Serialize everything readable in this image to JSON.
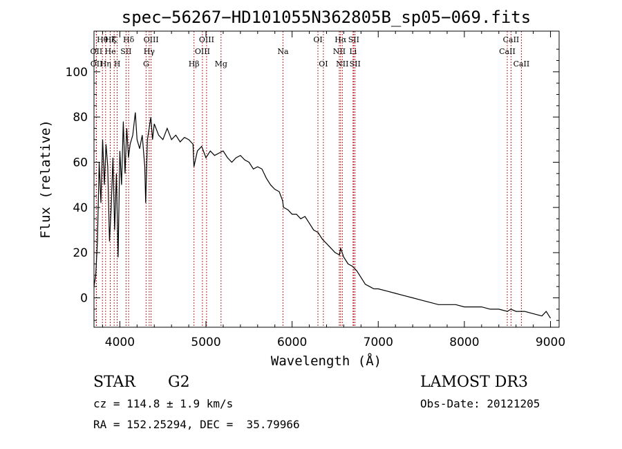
{
  "chart_data": {
    "type": "line",
    "title": "spec−56267−HD101055N362805B_sp05−069.fits",
    "xlabel": "Wavelength (Å)",
    "ylabel": "Flux (relative)",
    "xlim": [
      3700,
      9100
    ],
    "ylim": [
      -13,
      118
    ],
    "xticks": [
      4000,
      5000,
      6000,
      7000,
      8000,
      9000
    ],
    "yticks": [
      0,
      20,
      40,
      60,
      80,
      100
    ],
    "grid": false,
    "series": [
      {
        "name": "flux",
        "x": [
          3700,
          3720,
          3740,
          3760,
          3780,
          3800,
          3820,
          3840,
          3860,
          3880,
          3900,
          3920,
          3940,
          3960,
          3980,
          4000,
          4020,
          4040,
          4060,
          4080,
          4100,
          4120,
          4150,
          4180,
          4200,
          4230,
          4260,
          4290,
          4300,
          4320,
          4340,
          4360,
          4380,
          4400,
          4450,
          4500,
          4550,
          4600,
          4650,
          4700,
          4750,
          4800,
          4850,
          4860,
          4900,
          4950,
          5000,
          5050,
          5100,
          5150,
          5200,
          5250,
          5300,
          5350,
          5400,
          5450,
          5500,
          5550,
          5600,
          5650,
          5700,
          5750,
          5800,
          5850,
          5890,
          5900,
          5950,
          6000,
          6050,
          6100,
          6150,
          6200,
          6250,
          6300,
          6350,
          6400,
          6450,
          6500,
          6550,
          6563,
          6600,
          6650,
          6700,
          6750,
          6800,
          6850,
          6900,
          6950,
          7000,
          7100,
          7200,
          7300,
          7400,
          7500,
          7600,
          7700,
          7800,
          7900,
          8000,
          8100,
          8200,
          8300,
          8400,
          8500,
          8540,
          8600,
          8700,
          8800,
          8900,
          8950,
          9000
        ],
        "y": [
          5,
          10,
          25,
          60,
          42,
          70,
          50,
          68,
          58,
          25,
          40,
          62,
          30,
          55,
          18,
          65,
          50,
          78,
          55,
          75,
          62,
          68,
          72,
          82,
          70,
          66,
          72,
          58,
          42,
          70,
          75,
          80,
          70,
          77,
          72,
          70,
          75,
          70,
          72,
          69,
          71,
          70,
          68,
          58,
          65,
          67,
          62,
          65,
          63,
          64,
          65,
          62,
          60,
          62,
          63,
          61,
          60,
          57,
          58,
          57,
          53,
          50,
          48,
          47,
          43,
          40,
          39,
          37,
          37,
          35,
          36,
          33,
          30,
          29,
          26,
          24,
          22,
          20,
          19,
          22,
          18,
          15,
          14,
          12,
          9,
          6,
          5,
          4,
          4,
          3,
          2,
          1,
          0,
          -1,
          -2,
          -3,
          -3,
          -3,
          -4,
          -4,
          -4,
          -5,
          -5,
          -6,
          -5,
          -6,
          -6,
          -7,
          -8,
          -6,
          -9
        ]
      }
    ],
    "lines": [
      {
        "label": "OII",
        "wavelength": 3727,
        "row": 2
      },
      {
        "label": "OII",
        "wavelength": 3729,
        "row": 3
      },
      {
        "label": "Hθ",
        "wavelength": 3798,
        "row": 1
      },
      {
        "label": "Hη",
        "wavelength": 3835,
        "row": 3
      },
      {
        "label": "Hζ",
        "wavelength": 3889,
        "row": 1
      },
      {
        "label": "He",
        "wavelength": 3889,
        "row": 2
      },
      {
        "label": "K",
        "wavelength": 3934,
        "row": 1
      },
      {
        "label": "H",
        "wavelength": 3969,
        "row": 3
      },
      {
        "label": "SII",
        "wavelength": 4072,
        "row": 2
      },
      {
        "label": "Hδ",
        "wavelength": 4102,
        "row": 1
      },
      {
        "label": "G",
        "wavelength": 4305,
        "row": 3
      },
      {
        "label": "Hγ",
        "wavelength": 4341,
        "row": 2
      },
      {
        "label": "OIII",
        "wavelength": 4363,
        "row": 1
      },
      {
        "label": "Hβ",
        "wavelength": 4861,
        "row": 3
      },
      {
        "label": "OIII",
        "wavelength": 4959,
        "row": 2
      },
      {
        "label": "OIII",
        "wavelength": 5007,
        "row": 1
      },
      {
        "label": "Mg",
        "wavelength": 5175,
        "row": 3
      },
      {
        "label": "Na",
        "wavelength": 5894,
        "row": 2
      },
      {
        "label": "OI",
        "wavelength": 6300,
        "row": 1
      },
      {
        "label": "OI",
        "wavelength": 6363,
        "row": 3
      },
      {
        "label": "NII",
        "wavelength": 6548,
        "row": 2
      },
      {
        "label": "NII",
        "wavelength": 6583,
        "row": 3
      },
      {
        "label": "Hα",
        "wavelength": 6563,
        "row": 1
      },
      {
        "label": "SII",
        "wavelength": 6716,
        "row": 1
      },
      {
        "label": "Li",
        "wavelength": 6708,
        "row": 2
      },
      {
        "label": "SII",
        "wavelength": 6731,
        "row": 3
      },
      {
        "label": "CaII",
        "wavelength": 8498,
        "row": 2
      },
      {
        "label": "CaII",
        "wavelength": 8542,
        "row": 1
      },
      {
        "label": "CaII",
        "wavelength": 8662,
        "row": 3
      }
    ]
  },
  "info": {
    "object_class": "STAR",
    "subclass": "G2",
    "survey": "LAMOST DR3",
    "redshift": "cz = 114.8 ± 1.9 km/s",
    "obs_date": "Obs-Date: 20121205",
    "coords": "RA = 152.25294, DEC =  35.79966"
  },
  "colors": {
    "spectrum": "#000000",
    "line_marker": "#b22222",
    "axes": "#000000"
  }
}
